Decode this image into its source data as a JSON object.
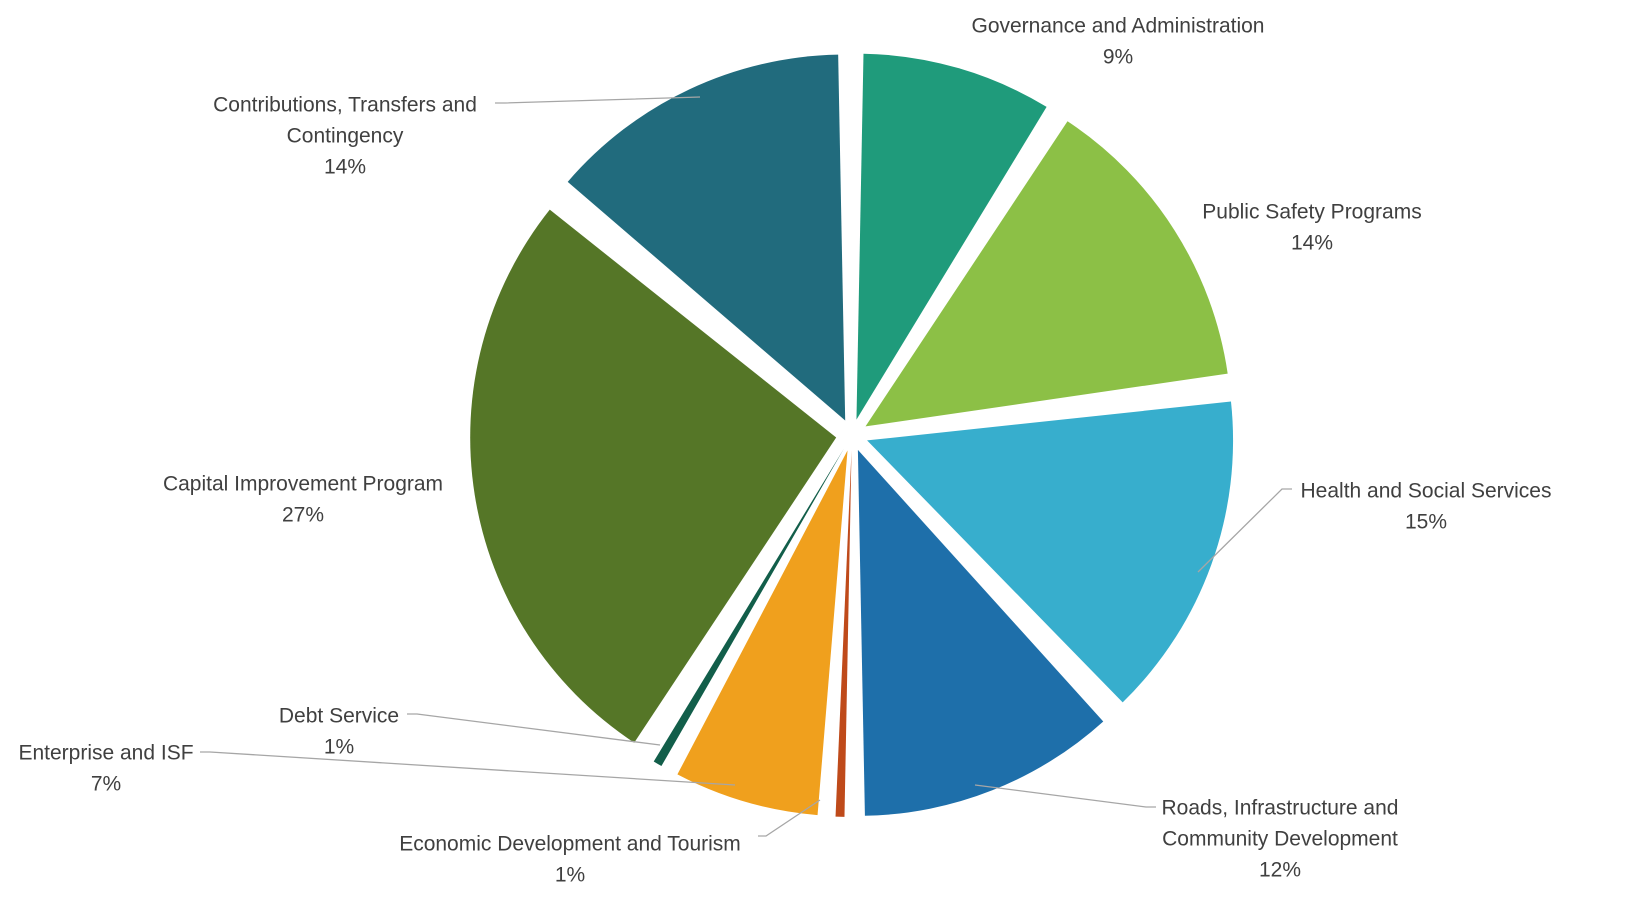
{
  "chart_data": {
    "type": "pie",
    "start_angle_deg": 0,
    "direction": "clockwise",
    "exploded": true,
    "slices": [
      {
        "name_lines": [
          "Governance and Administration"
        ],
        "pct_label": "9%",
        "value": 9,
        "color": "#1f9b7b"
      },
      {
        "name_lines": [
          "Public Safety Programs"
        ],
        "pct_label": "14%",
        "value": 14,
        "color": "#8cc046"
      },
      {
        "name_lines": [
          "Health and Social Services"
        ],
        "pct_label": "15%",
        "value": 15,
        "color": "#37aecd"
      },
      {
        "name_lines": [
          "Roads, Infrastructure and",
          "Community Development"
        ],
        "pct_label": "12%",
        "value": 12,
        "color": "#1e6faa"
      },
      {
        "name_lines": [
          "Economic Development and Tourism"
        ],
        "pct_label": "1%",
        "value": 1,
        "color": "#bf4a1a"
      },
      {
        "name_lines": [
          "Enterprise and ISF"
        ],
        "pct_label": "7%",
        "value": 7,
        "color": "#f0a01d"
      },
      {
        "name_lines": [
          "Debt Service"
        ],
        "pct_label": "1%",
        "value": 1,
        "color": "#125e4a"
      },
      {
        "name_lines": [
          "Capital Improvement Program"
        ],
        "pct_label": "27%",
        "value": 27,
        "color": "#557627"
      },
      {
        "name_lines": [
          "Contributions, Transfers and",
          "Contingency"
        ],
        "pct_label": "14%",
        "value": 14,
        "color": "#216b7d"
      }
    ]
  }
}
